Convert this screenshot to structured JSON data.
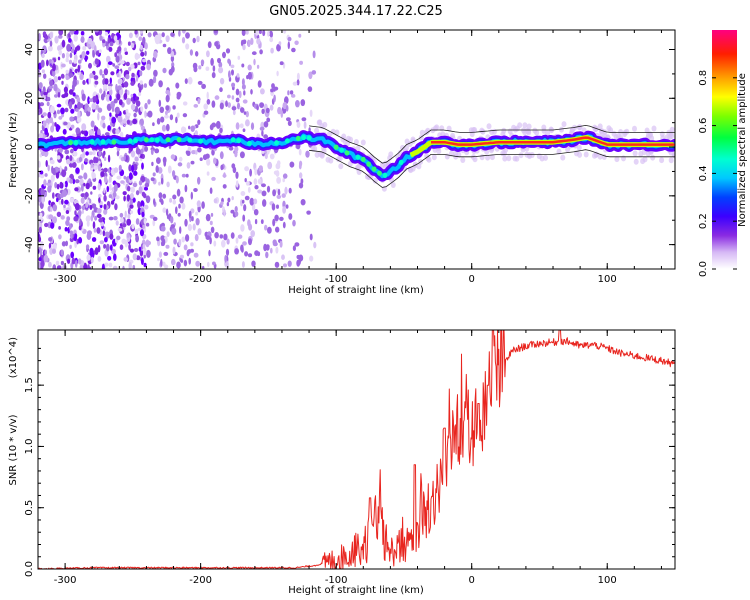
{
  "title": "GN05.2025.344.17.22.C25",
  "chart_data": [
    {
      "type": "heatmap",
      "title": "GN05.2025.344.17.22.C25",
      "xlabel": "Height of straight line (km)",
      "ylabel": "Frequency (Hz)",
      "xlim": [
        -320,
        150
      ],
      "ylim": [
        -50,
        48
      ],
      "x_ticks": [
        -300,
        -200,
        -100,
        0,
        100
      ],
      "x_tick_labels": [
        "-300",
        "-200",
        "-100",
        "0",
        "100"
      ],
      "y_ticks": [
        -40,
        -20,
        0,
        20,
        40
      ],
      "y_tick_labels": [
        "-40",
        "-20",
        "0",
        "20",
        "40"
      ],
      "ridge": {
        "x": [
          -318,
          -290,
          -260,
          -240,
          -210,
          -190,
          -175,
          -160,
          -140,
          -125,
          -110,
          -100,
          -90,
          -80,
          -72,
          -65,
          -60,
          -55,
          -48,
          -40,
          -30,
          -20,
          -10,
          0,
          20,
          60,
          75,
          85,
          95,
          100,
          150
        ],
        "y": [
          1,
          2,
          2,
          3,
          3,
          2,
          3,
          1,
          2,
          4,
          3,
          0,
          -3,
          -5,
          -9,
          -12,
          -10,
          -8,
          -4,
          -2,
          2,
          2,
          1,
          1,
          2,
          2,
          3,
          4,
          2,
          1,
          1
        ]
      },
      "colorbar": {
        "label": "Normalized spectral amplitude",
        "ticks": [
          0.0,
          0.2,
          0.4,
          0.6,
          0.8
        ],
        "tick_labels": [
          "0.0",
          "0.2",
          "0.4",
          "0.6",
          "0.8"
        ],
        "range": [
          0,
          1
        ]
      }
    },
    {
      "type": "line",
      "xlabel": "Height of straight line (km)",
      "ylabel": "SNR (10 * v/v)",
      "y_multiplier": "(x10^4)",
      "xlim": [
        -320,
        150
      ],
      "ylim": [
        0,
        1.95
      ],
      "x_ticks": [
        -300,
        -200,
        -100,
        0,
        100
      ],
      "x_tick_labels": [
        "-300",
        "-200",
        "-100",
        "0",
        "100"
      ],
      "y_ticks": [
        0.0,
        0.5,
        1.0,
        1.5
      ],
      "y_tick_labels": [
        "0.0",
        "0.5",
        "1.0",
        "1.5"
      ],
      "series": [
        {
          "name": "SNR",
          "color": "#e8251f",
          "x": [
            -320,
            -280,
            -240,
            -200,
            -160,
            -130,
            -115,
            -105,
            -95,
            -85,
            -78,
            -72,
            -68,
            -62,
            -55,
            -45,
            -38,
            -30,
            -22,
            -15,
            -10,
            -5,
            0,
            5,
            10,
            15,
            20,
            25,
            30,
            40,
            50,
            60,
            70,
            80,
            90,
            100,
            110,
            120,
            130,
            140,
            150
          ],
          "y": [
            0.0,
            0.01,
            0.01,
            0.01,
            0.01,
            0.01,
            0.03,
            0.06,
            0.1,
            0.15,
            0.2,
            0.35,
            0.4,
            0.12,
            0.18,
            0.2,
            0.35,
            0.55,
            0.75,
            0.95,
            1.15,
            1.3,
            1.05,
            1.2,
            1.4,
            1.55,
            1.6,
            1.7,
            1.78,
            1.82,
            1.84,
            1.85,
            1.86,
            1.82,
            1.83,
            1.8,
            1.76,
            1.74,
            1.72,
            1.7,
            1.67
          ],
          "peaks": [
            {
              "x": -75,
              "y": 0.58
            },
            {
              "x": -42,
              "y": 0.85
            },
            {
              "x": -20,
              "y": 1.15
            },
            {
              "x": 5,
              "y": 1.35
            },
            {
              "x": 12,
              "y": 1.5
            },
            {
              "x": 65,
              "y": 1.95
            }
          ]
        }
      ]
    }
  ]
}
